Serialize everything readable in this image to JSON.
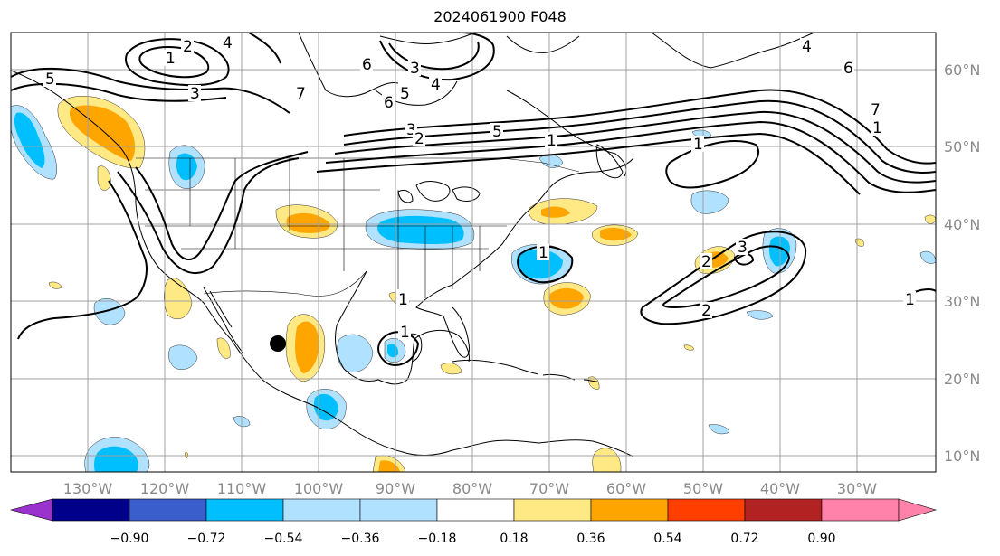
{
  "title": "2024061900 F048",
  "longitude_labels": [
    "130°W",
    "120°W",
    "110°W",
    "100°W",
    "90°W",
    "80°W",
    "70°W",
    "60°W",
    "50°W",
    "40°W",
    "30°W"
  ],
  "latitude_labels": [
    "60°N",
    "50°N",
    "40°N",
    "30°N",
    "20°N",
    "10°N"
  ],
  "colorbar": {
    "ticks": [
      "−0.90",
      "−0.72",
      "−0.54",
      "−0.36",
      "−0.18",
      "0.18",
      "0.36",
      "0.54",
      "0.72",
      "0.90"
    ],
    "colors": [
      "#9a32cd",
      "#00008b",
      "#3a5fcd",
      "#00bfff",
      "#b0e2ff",
      "#ffffff",
      "#ffe985",
      "#ffa500",
      "#ff3e00",
      "#b22222",
      "#ff82ab"
    ]
  },
  "contour_labels": [
    "1",
    "2",
    "3",
    "4",
    "5",
    "6",
    "7",
    "1",
    "2",
    "3",
    "4",
    "5",
    "6",
    "1",
    "2",
    "3",
    "4",
    "5",
    "6",
    "7",
    "1",
    "2",
    "3",
    "1",
    "2",
    "1",
    "1",
    "1"
  ],
  "colors": {
    "positive_light": "#ffe985",
    "positive_mid": "#ffa500",
    "negative_light": "#b0e2ff",
    "negative_mid": "#00bfff",
    "contour": "#000000",
    "grid": "#a0a0a0",
    "coast": "#000000"
  },
  "marker": "black-dot"
}
